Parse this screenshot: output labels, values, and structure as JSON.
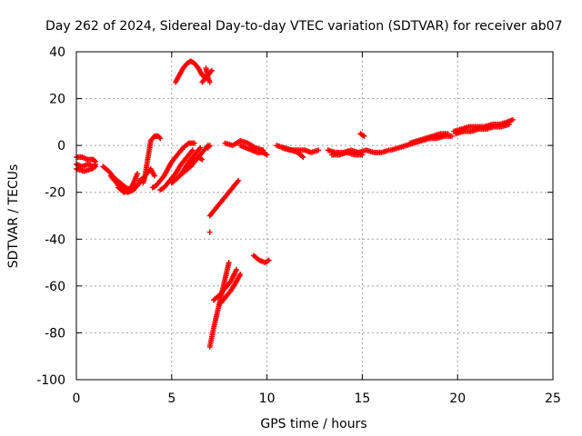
{
  "chart_data": {
    "type": "scatter",
    "title": "Day 262 of 2024, Sidereal Day-to-day VTEC variation (SDTVAR) for receiver ab07",
    "xlabel": "GPS time / hours",
    "ylabel": "SDTVAR / TECUs",
    "xlim": [
      0,
      25
    ],
    "ylim": [
      -100,
      40
    ],
    "xticks": [
      0,
      5,
      10,
      15,
      20,
      25
    ],
    "yticks": [
      -100,
      -80,
      -60,
      -40,
      -20,
      0,
      20,
      40
    ],
    "grid": true,
    "marker": "+",
    "legend": "none",
    "series": [
      {
        "name": "SDTVAR",
        "color": "#ff0000",
        "segments": [
          {
            "x": [
              0.0,
              0.3,
              0.6,
              0.9,
              1.0
            ],
            "y": [
              -8,
              -9,
              -8,
              -9,
              -8
            ]
          },
          {
            "x": [
              0.0,
              0.3,
              0.6,
              0.9,
              1.0
            ],
            "y": [
              -5,
              -5,
              -6,
              -6,
              -7
            ]
          },
          {
            "x": [
              0.0,
              0.4,
              0.8,
              1.0
            ],
            "y": [
              -10,
              -11,
              -10,
              -9
            ]
          },
          {
            "x": [
              1.4,
              1.7,
              2.0,
              2.3,
              2.6,
              2.9,
              3.2,
              3.5
            ],
            "y": [
              -9,
              -11,
              -14,
              -16,
              -18,
              -19,
              -17,
              -14
            ]
          },
          {
            "x": [
              1.8,
              2.1,
              2.4,
              2.7,
              3.0,
              3.3
            ],
            "y": [
              -13,
              -16,
              -19,
              -20,
              -19,
              -16
            ]
          },
          {
            "x": [
              2.2,
              2.5,
              2.8,
              3.0,
              3.2
            ],
            "y": [
              -18,
              -20,
              -19,
              -16,
              -12
            ]
          },
          {
            "x": [
              3.3,
              3.5,
              3.7,
              3.9,
              4.1
            ],
            "y": [
              -15,
              -14,
              -12,
              -10,
              -13
            ]
          },
          {
            "x": [
              3.5,
              3.6,
              3.7,
              3.8,
              3.9,
              4.1,
              4.3,
              4.4
            ],
            "y": [
              -16,
              -13,
              -8,
              -3,
              2,
              4,
              4,
              3
            ]
          },
          {
            "x": [
              4.0,
              4.2,
              4.4,
              4.6,
              4.8,
              5.0,
              5.3,
              5.6,
              5.9,
              6.2
            ],
            "y": [
              -18,
              -17,
              -15,
              -13,
              -10,
              -7,
              -4,
              -1,
              1,
              1
            ]
          },
          {
            "x": [
              4.4,
              4.6,
              4.9,
              5.2,
              5.5,
              5.8,
              6.1
            ],
            "y": [
              -19,
              -18,
              -15,
              -12,
              -8,
              -5,
              -2
            ]
          },
          {
            "x": [
              5.0,
              5.3,
              5.6,
              5.9,
              6.2,
              6.5
            ],
            "y": [
              -16,
              -14,
              -11,
              -7,
              -4,
              -1
            ]
          },
          {
            "x": [
              5.4,
              5.7,
              6.0,
              6.3,
              6.6,
              6.9
            ],
            "y": [
              -13,
              -11,
              -9,
              -6,
              -3,
              0
            ]
          },
          {
            "x": [
              5.2,
              5.4,
              5.6,
              5.8,
              6.0,
              6.2,
              6.4,
              6.6,
              6.8
            ],
            "y": [
              27,
              30,
              33,
              35,
              36,
              35,
              33,
              30,
              29
            ]
          },
          {
            "x": [
              6.6,
              6.8,
              7.0,
              7.1
            ],
            "y": [
              27,
              29,
              31,
              32
            ]
          },
          {
            "x": [
              6.8,
              6.9,
              7.0
            ],
            "y": [
              33,
              29,
              27
            ]
          },
          {
            "x": [
              5.8,
              6.1,
              6.4,
              6.6
            ],
            "y": [
              -10,
              -7,
              -5,
              -6
            ]
          },
          {
            "x": [
              6.9,
              7.0
            ],
            "y": [
              -1,
              0
            ]
          },
          {
            "x": [
              7.0,
              7.4,
              7.8,
              8.2,
              8.5
            ],
            "y": [
              -30,
              -26,
              -22,
              -18,
              -15
            ]
          },
          {
            "x": [
              7.0
            ],
            "y": [
              -37
            ]
          },
          {
            "x": [
              7.0,
              7.2,
              7.4,
              7.6,
              7.8,
              8.0
            ],
            "y": [
              -86,
              -78,
              -71,
              -64,
              -57,
              -50
            ]
          },
          {
            "x": [
              7.2,
              7.5,
              7.8,
              8.1,
              8.4
            ],
            "y": [
              -66,
              -64,
              -61,
              -58,
              -53
            ]
          },
          {
            "x": [
              7.5,
              7.8,
              8.1,
              8.4,
              8.6
            ],
            "y": [
              -68,
              -65,
              -62,
              -58,
              -55
            ]
          },
          {
            "x": [
              9.3,
              9.6,
              9.9,
              10.1
            ],
            "y": [
              -47,
              -49,
              -50,
              -49
            ]
          },
          {
            "x": [
              7.8,
              8.2,
              8.6,
              9.0,
              9.4,
              9.8
            ],
            "y": [
              1,
              0,
              2,
              1,
              -1,
              -2
            ]
          },
          {
            "x": [
              8.6,
              8.9,
              9.2,
              9.5,
              9.8,
              10.0
            ],
            "y": [
              0,
              -1,
              -2,
              -3,
              -3,
              -4
            ]
          },
          {
            "x": [
              10.5,
              10.9,
              11.3,
              11.6,
              11.9
            ],
            "y": [
              0,
              -1,
              -2,
              -3,
              -5
            ]
          },
          {
            "x": [
              10.8,
              11.2,
              11.6,
              12.0,
              12.3,
              12.7
            ],
            "y": [
              -1,
              -2,
              -2,
              -2,
              -3,
              -2
            ]
          },
          {
            "x": [
              13.2,
              13.6,
              14.0,
              14.4,
              14.8,
              15.2,
              15.6,
              16.0,
              16.4
            ],
            "y": [
              -2,
              -3,
              -3,
              -2,
              -3,
              -2,
              -3,
              -3,
              -2
            ]
          },
          {
            "x": [
              13.4,
              13.8,
              14.2,
              14.6,
              15.0
            ],
            "y": [
              -4,
              -4,
              -3,
              -4,
              -4
            ]
          },
          {
            "x": [
              14.9,
              15.1
            ],
            "y": [
              5,
              4
            ]
          },
          {
            "x": [
              16.5,
              16.9,
              17.3,
              17.7,
              18.1,
              18.5,
              18.9,
              19.3,
              19.7
            ],
            "y": [
              -2,
              -1,
              0,
              1,
              2,
              3,
              3,
              4,
              4
            ]
          },
          {
            "x": [
              17.5,
              17.9,
              18.3,
              18.7,
              19.1,
              19.5
            ],
            "y": [
              1,
              2,
              3,
              4,
              5,
              5
            ]
          },
          {
            "x": [
              19.8,
              20.2,
              20.6,
              21.0,
              21.4,
              21.8,
              22.2,
              22.6,
              22.9
            ],
            "y": [
              6,
              7,
              8,
              8,
              8,
              9,
              9,
              10,
              11
            ]
          },
          {
            "x": [
              19.9,
              20.3,
              20.7,
              21.1,
              21.5,
              21.9,
              22.3,
              22.7
            ],
            "y": [
              5,
              6,
              6,
              7,
              7,
              8,
              8,
              9
            ]
          }
        ]
      }
    ]
  }
}
